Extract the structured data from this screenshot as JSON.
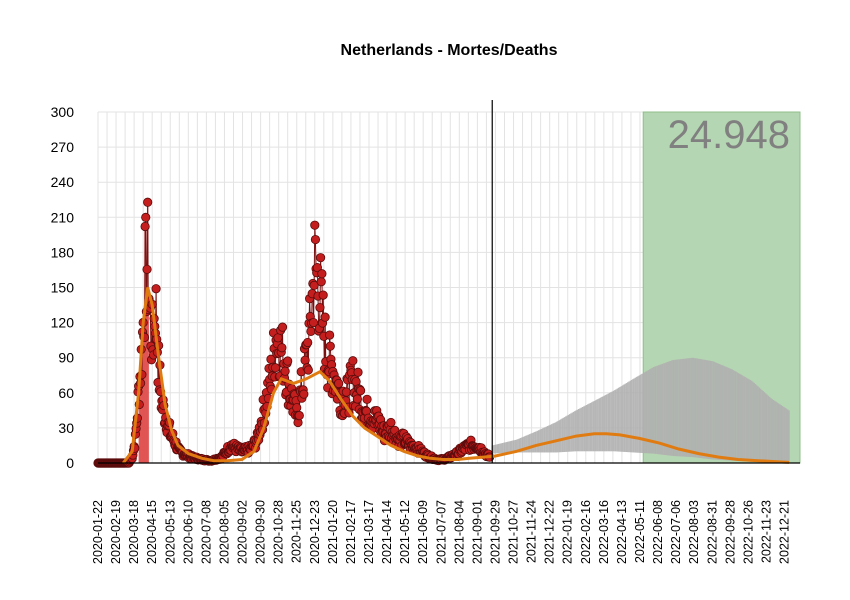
{
  "chart_data": {
    "type": "line",
    "title": "Netherlands - Mortes/Deaths",
    "xlabel": "",
    "ylabel": "",
    "ylim": [
      0,
      300
    ],
    "yticks": [
      0,
      30,
      60,
      90,
      120,
      150,
      180,
      210,
      240,
      270,
      300
    ],
    "grid": true,
    "x_start": "2020-01-22",
    "x_end": "2023-01-14",
    "observed_end": "2021-09-24",
    "xtick_labels": [
      "2020-01-22",
      "2020-02-19",
      "2020-03-18",
      "2020-04-15",
      "2020-05-13",
      "2020-06-10",
      "2020-07-08",
      "2020-08-05",
      "2020-09-02",
      "2020-09-30",
      "2020-10-28",
      "2020-11-25",
      "2020-12-23",
      "2021-01-20",
      "2021-02-17",
      "2021-03-17",
      "2021-04-14",
      "2021-05-12",
      "2021-06-09",
      "2021-07-07",
      "2021-08-04",
      "2021-09-01",
      "2021-09-29",
      "2021-10-27",
      "2021-11-24",
      "2021-12-22",
      "2022-01-19",
      "2022-02-16",
      "2022-03-16",
      "2022-04-13",
      "2022-05-11",
      "2022-06-08",
      "2022-07-06",
      "2022-08-03",
      "2022-08-31",
      "2022-09-28",
      "2022-10-26",
      "2022-11-23",
      "2022-12-21"
    ],
    "highlight_region": {
      "x_start": "2022-05-16",
      "x_end": "2023-01-14",
      "color": "#b5d6b2",
      "label": "24.948"
    },
    "observed": {
      "x": [
        "2020-01-22",
        "2020-03-05",
        "2020-03-10",
        "2020-03-15",
        "2020-03-20",
        "2020-03-25",
        "2020-03-30",
        "2020-04-04",
        "2020-04-08",
        "2020-04-12",
        "2020-04-16",
        "2020-04-20",
        "2020-04-25",
        "2020-04-30",
        "2020-05-06",
        "2020-05-13",
        "2020-05-20",
        "2020-05-27",
        "2020-06-03",
        "2020-06-15",
        "2020-07-01",
        "2020-07-15",
        "2020-08-01",
        "2020-08-15",
        "2020-09-01",
        "2020-09-15",
        "2020-09-25",
        "2020-10-05",
        "2020-10-15",
        "2020-10-25",
        "2020-11-05",
        "2020-11-15",
        "2020-11-25",
        "2020-12-05",
        "2020-12-15",
        "2020-12-23",
        "2021-01-01",
        "2021-01-10",
        "2021-01-20",
        "2021-01-30",
        "2021-02-10",
        "2021-02-20",
        "2021-03-01",
        "2021-03-10",
        "2021-03-20",
        "2021-04-01",
        "2021-04-10",
        "2021-04-20",
        "2021-05-01",
        "2021-05-10",
        "2021-05-20",
        "2021-06-01",
        "2021-06-10",
        "2021-06-20",
        "2021-07-01",
        "2021-07-10",
        "2021-07-20",
        "2021-08-01",
        "2021-08-10",
        "2021-08-20",
        "2021-09-01",
        "2021-09-10",
        "2021-09-20"
      ],
      "y": [
        0,
        0,
        0,
        5,
        20,
        60,
        95,
        160,
        175,
        120,
        100,
        140,
        80,
        50,
        40,
        25,
        18,
        10,
        8,
        5,
        3,
        2,
        5,
        15,
        10,
        12,
        20,
        45,
        70,
        110,
        90,
        60,
        40,
        70,
        110,
        170,
        140,
        90,
        80,
        60,
        55,
        70,
        60,
        45,
        40,
        35,
        25,
        30,
        20,
        20,
        15,
        12,
        8,
        5,
        3,
        3,
        5,
        8,
        12,
        15,
        15,
        10,
        5
      ]
    },
    "smoothed": {
      "name": "",
      "color": "#e07b12",
      "x": [
        "2020-03-01",
        "2020-03-15",
        "2020-03-25",
        "2020-04-01",
        "2020-04-08",
        "2020-04-15",
        "2020-04-25",
        "2020-05-05",
        "2020-05-15",
        "2020-05-25",
        "2020-06-10",
        "2020-07-01",
        "2020-07-20",
        "2020-08-10",
        "2020-09-01",
        "2020-09-20",
        "2020-10-05",
        "2020-10-20",
        "2020-11-01",
        "2020-11-20",
        "2020-12-10",
        "2020-12-31",
        "2021-01-15",
        "2021-02-01",
        "2021-02-20",
        "2021-03-10",
        "2021-04-01",
        "2021-04-20",
        "2021-05-10",
        "2021-06-01",
        "2021-06-20",
        "2021-07-10",
        "2021-08-01",
        "2021-08-20",
        "2021-09-10",
        "2021-09-29",
        "2021-11-01",
        "2021-12-01",
        "2022-01-01",
        "2022-02-01",
        "2022-03-01",
        "2022-03-20",
        "2022-04-10",
        "2022-05-10",
        "2022-06-10",
        "2022-07-10",
        "2022-08-10",
        "2022-09-10",
        "2022-10-10",
        "2022-11-10",
        "2022-12-10",
        "2022-12-28"
      ],
      "y": [
        0,
        10,
        60,
        120,
        150,
        135,
        90,
        50,
        28,
        15,
        8,
        4,
        2,
        2,
        3,
        10,
        30,
        60,
        72,
        68,
        72,
        78,
        70,
        55,
        40,
        30,
        22,
        15,
        10,
        6,
        4,
        3,
        3,
        4,
        5,
        6,
        10,
        15,
        19,
        23,
        25,
        25,
        24,
        21,
        17,
        12,
        8,
        5,
        3,
        2,
        1,
        0.5
      ]
    },
    "forecast_band": {
      "color": "#b0b0b0",
      "x": [
        "2021-09-24",
        "2021-11-01",
        "2021-12-01",
        "2022-01-01",
        "2022-02-01",
        "2022-03-01",
        "2022-04-01",
        "2022-05-01",
        "2022-06-01",
        "2022-07-01",
        "2022-08-01",
        "2022-09-01",
        "2022-10-01",
        "2022-11-01",
        "2022-12-01",
        "2022-12-28"
      ],
      "upper": [
        15,
        20,
        27,
        35,
        45,
        53,
        62,
        72,
        82,
        88,
        90,
        87,
        80,
        70,
        55,
        45
      ],
      "lower": [
        8,
        9,
        9,
        9,
        10,
        10,
        10,
        9,
        8,
        6,
        5,
        3,
        2,
        1,
        1,
        0
      ]
    }
  }
}
